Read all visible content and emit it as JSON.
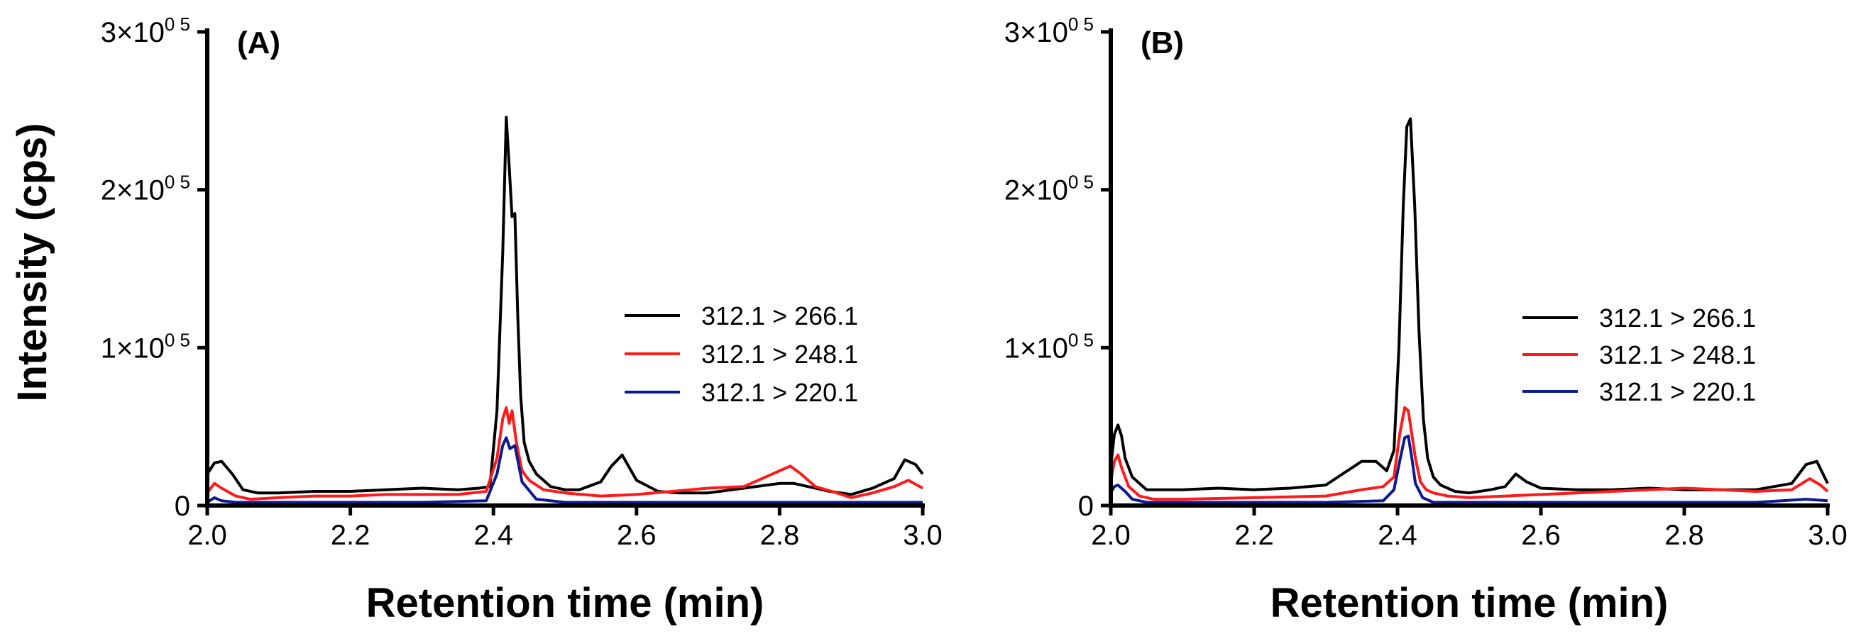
{
  "shared": {
    "ylabel": "Intensity (cps)",
    "ytick_labels": [
      {
        "value": 0,
        "mant": "0",
        "times": "",
        "base": "",
        "exp": ""
      },
      {
        "value": 100000,
        "mant": "1",
        "times": "×",
        "base": "10",
        "exp": "0 5"
      },
      {
        "value": 200000,
        "mant": "2",
        "times": "×",
        "base": "10",
        "exp": "0 5"
      },
      {
        "value": 300000,
        "mant": "3",
        "times": "×",
        "base": "10",
        "exp": "0 5"
      }
    ],
    "colors": {
      "black": "#000000",
      "red": "#ff1a1a",
      "blue": "#0b1a8c"
    }
  },
  "chart_data": [
    {
      "type": "line",
      "panel_label": "(A)",
      "title": "",
      "xlabel": "Retention time (min)",
      "ylabel": "Intensity (cps)",
      "xlim": [
        2.0,
        3.0
      ],
      "ylim": [
        0,
        300000
      ],
      "xticks": [
        2.0,
        2.2,
        2.4,
        2.6,
        2.8,
        3.0
      ],
      "xtick_labels": [
        "2.0",
        "2.2",
        "2.4",
        "2.6",
        "2.8",
        "3.0"
      ],
      "yticks": [
        0,
        100000,
        200000,
        300000
      ],
      "legend_position": "right",
      "series": [
        {
          "name": "312.1 > 266.1",
          "color": "#000000",
          "x": [
            2.0,
            2.01,
            2.02,
            2.035,
            2.05,
            2.07,
            2.1,
            2.15,
            2.2,
            2.25,
            2.3,
            2.35,
            2.38,
            2.395,
            2.405,
            2.413,
            2.418,
            2.422,
            2.426,
            2.43,
            2.434,
            2.438,
            2.443,
            2.45,
            2.46,
            2.48,
            2.5,
            2.52,
            2.55,
            2.565,
            2.58,
            2.6,
            2.63,
            2.66,
            2.7,
            2.75,
            2.8,
            2.82,
            2.84,
            2.87,
            2.9,
            2.93,
            2.96,
            2.975,
            2.99,
            3.0
          ],
          "y": [
            20000,
            27000,
            28000,
            20000,
            10000,
            8000,
            8000,
            9000,
            9000,
            10000,
            11000,
            10000,
            11000,
            12000,
            60000,
            160000,
            246000,
            215000,
            183000,
            185000,
            120000,
            70000,
            40000,
            28000,
            20000,
            12000,
            10000,
            10000,
            15000,
            25000,
            32000,
            16000,
            9000,
            8000,
            8000,
            11000,
            14000,
            14000,
            12000,
            9000,
            7000,
            11000,
            17000,
            29000,
            26000,
            20000
          ]
        },
        {
          "name": "312.1 > 248.1",
          "color": "#ff1a1a",
          "x": [
            2.0,
            2.01,
            2.02,
            2.04,
            2.06,
            2.1,
            2.15,
            2.2,
            2.25,
            2.3,
            2.35,
            2.39,
            2.405,
            2.413,
            2.418,
            2.422,
            2.426,
            2.432,
            2.44,
            2.45,
            2.47,
            2.5,
            2.55,
            2.6,
            2.65,
            2.7,
            2.75,
            2.78,
            2.8,
            2.815,
            2.83,
            2.85,
            2.88,
            2.9,
            2.93,
            2.96,
            2.98,
            3.0
          ],
          "y": [
            8000,
            14000,
            11000,
            6000,
            4000,
            5000,
            6000,
            6000,
            7000,
            7000,
            7000,
            9000,
            30000,
            55000,
            62000,
            52000,
            60000,
            40000,
            22000,
            16000,
            10000,
            8000,
            6000,
            7000,
            9000,
            11000,
            12000,
            18000,
            22000,
            25000,
            20000,
            12000,
            8000,
            5000,
            8000,
            12000,
            16000,
            11000
          ]
        },
        {
          "name": "312.1 > 220.1",
          "color": "#0b1a8c",
          "x": [
            2.0,
            2.01,
            2.02,
            2.04,
            2.1,
            2.2,
            2.3,
            2.39,
            2.405,
            2.413,
            2.418,
            2.423,
            2.43,
            2.44,
            2.46,
            2.5,
            2.6,
            2.7,
            2.8,
            2.9,
            3.0
          ],
          "y": [
            2000,
            5000,
            3000,
            2000,
            2000,
            2000,
            2000,
            3000,
            20000,
            38000,
            43000,
            36000,
            38000,
            15000,
            4000,
            2000,
            2000,
            2000,
            2000,
            2000,
            2000
          ]
        }
      ]
    },
    {
      "type": "line",
      "panel_label": "(B)",
      "title": "",
      "xlabel": "Retention time (min)",
      "ylabel": "",
      "xlim": [
        2.0,
        3.0
      ],
      "ylim": [
        0,
        300000
      ],
      "xticks": [
        2.0,
        2.2,
        2.4,
        2.6,
        2.8,
        3.0
      ],
      "xtick_labels": [
        "2.0",
        "2.2",
        "2.4",
        "2.6",
        "2.8",
        "3.0"
      ],
      "yticks": [
        0,
        100000,
        200000,
        300000
      ],
      "legend_position": "right",
      "series": [
        {
          "name": "312.1 > 266.1",
          "color": "#000000",
          "x": [
            2.0,
            2.005,
            2.01,
            2.015,
            2.02,
            2.03,
            2.05,
            2.08,
            2.1,
            2.15,
            2.2,
            2.25,
            2.3,
            2.33,
            2.35,
            2.37,
            2.385,
            2.395,
            2.402,
            2.408,
            2.413,
            2.418,
            2.424,
            2.43,
            2.436,
            2.442,
            2.45,
            2.46,
            2.48,
            2.5,
            2.53,
            2.55,
            2.565,
            2.58,
            2.6,
            2.65,
            2.7,
            2.75,
            2.8,
            2.85,
            2.9,
            2.95,
            2.97,
            2.985,
            3.0
          ],
          "y": [
            25000,
            45000,
            51000,
            44000,
            30000,
            18000,
            10000,
            10000,
            10000,
            11000,
            10000,
            11000,
            13000,
            22000,
            28000,
            28000,
            22000,
            35000,
            100000,
            190000,
            240000,
            245000,
            190000,
            110000,
            55000,
            30000,
            18000,
            13000,
            9000,
            8000,
            10000,
            12000,
            20000,
            15000,
            11000,
            10000,
            10000,
            11000,
            10000,
            10000,
            10000,
            14000,
            26000,
            28000,
            14000
          ]
        },
        {
          "name": "312.1 > 248.1",
          "color": "#ff1a1a",
          "x": [
            2.0,
            2.005,
            2.01,
            2.015,
            2.025,
            2.04,
            2.06,
            2.1,
            2.2,
            2.3,
            2.35,
            2.38,
            2.395,
            2.403,
            2.41,
            2.415,
            2.42,
            2.425,
            2.432,
            2.44,
            2.45,
            2.47,
            2.5,
            2.55,
            2.6,
            2.65,
            2.7,
            2.75,
            2.8,
            2.85,
            2.9,
            2.95,
            2.975,
            2.99,
            3.0
          ],
          "y": [
            15000,
            28000,
            32000,
            24000,
            12000,
            6000,
            4000,
            4000,
            5000,
            6000,
            10000,
            12000,
            18000,
            45000,
            62000,
            60000,
            45000,
            30000,
            15000,
            10000,
            8000,
            6000,
            5000,
            6000,
            7000,
            8000,
            9000,
            10000,
            11000,
            10000,
            9000,
            10000,
            17000,
            13000,
            9000
          ]
        },
        {
          "name": "312.1 > 220.1",
          "color": "#0b1a8c",
          "x": [
            2.0,
            2.005,
            2.01,
            2.02,
            2.03,
            2.05,
            2.1,
            2.2,
            2.3,
            2.38,
            2.395,
            2.403,
            2.41,
            2.415,
            2.42,
            2.425,
            2.435,
            2.45,
            2.5,
            2.6,
            2.7,
            2.8,
            2.9,
            2.97,
            3.0
          ],
          "y": [
            8000,
            12000,
            13000,
            9000,
            4000,
            2000,
            2000,
            2000,
            2000,
            3000,
            10000,
            28000,
            43000,
            44000,
            30000,
            14000,
            5000,
            2000,
            2000,
            2000,
            2000,
            2000,
            2000,
            4000,
            3000
          ]
        }
      ]
    }
  ]
}
